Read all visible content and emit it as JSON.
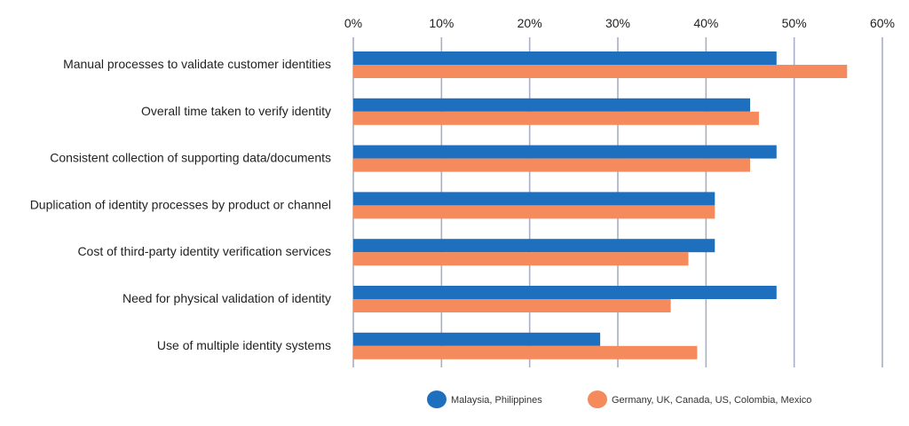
{
  "chart_data": {
    "type": "bar",
    "orientation": "horizontal",
    "categories": [
      "Manual processes to validate customer identities",
      "Overall time taken to verify identity",
      "Consistent collection of supporting data/documents",
      "Duplication of identity processes by product or channel",
      "Cost of third-party identity verification services",
      "Need for physical validation of identity",
      "Use of multiple identity systems"
    ],
    "series": [
      {
        "name": "Malaysia, Philippines",
        "color": "#1f6fbf",
        "values": [
          48,
          45,
          48,
          41,
          41,
          48,
          28
        ]
      },
      {
        "name": "Germany, UK, Canada, US, Colombia, Mexico",
        "color": "#f58a5c",
        "values": [
          56,
          46,
          45,
          41,
          38,
          36,
          39
        ]
      }
    ],
    "xlim": [
      0,
      60
    ],
    "xticks": [
      0,
      10,
      20,
      30,
      40,
      50,
      60
    ],
    "xtick_labels": [
      "0%",
      "10%",
      "20%",
      "30%",
      "40%",
      "50%",
      "60%"
    ],
    "axis_position": "top",
    "grid": true,
    "legend_position": "bottom",
    "title": "",
    "xlabel": "",
    "ylabel": ""
  }
}
